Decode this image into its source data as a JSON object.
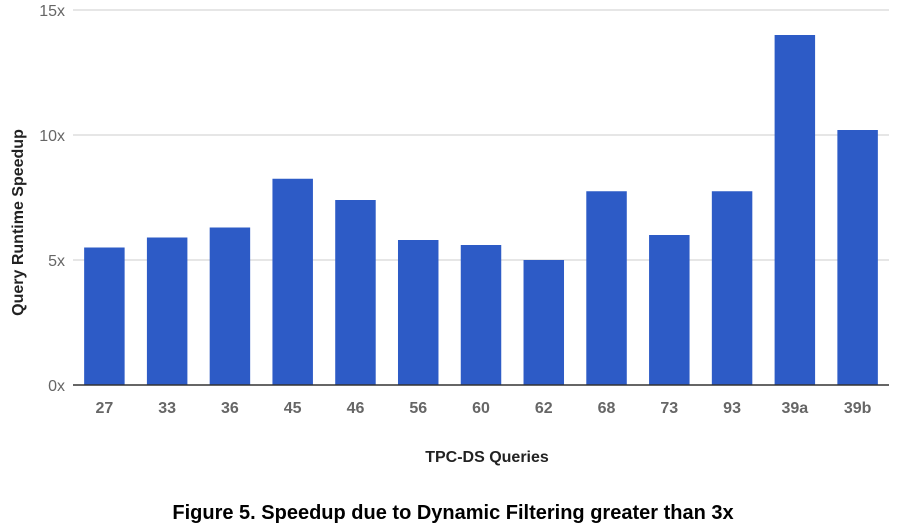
{
  "chart_data": {
    "type": "bar",
    "title": "",
    "xlabel": "TPC-DS Queries",
    "ylabel": "Query Runtime Speedup",
    "categories": [
      "27",
      "33",
      "36",
      "45",
      "46",
      "56",
      "60",
      "62",
      "68",
      "73",
      "93",
      "39a",
      "39b"
    ],
    "values": [
      5.5,
      5.9,
      6.3,
      8.25,
      7.4,
      5.8,
      5.6,
      5.0,
      7.75,
      6.0,
      7.75,
      14.0,
      10.2
    ],
    "ylim": [
      0,
      15
    ],
    "yticks": [
      0,
      5,
      10,
      15
    ],
    "ytick_labels": [
      "0x",
      "5x",
      "10x",
      "15x"
    ],
    "grid": true,
    "legend": "none",
    "colors": {
      "bar": "#2d5bc6",
      "grid": "#cccccc",
      "axis": "#333333"
    }
  },
  "caption": "Figure 5. Speedup due to Dynamic Filtering greater than 3x"
}
